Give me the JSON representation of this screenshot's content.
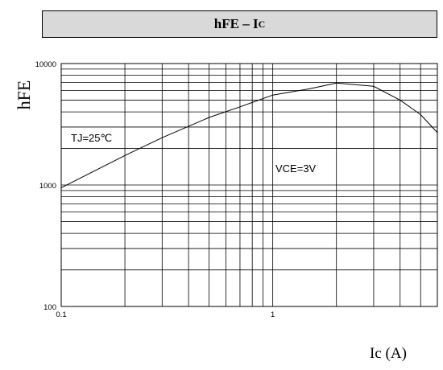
{
  "header": {
    "title_main": "hFE – I",
    "title_sub": "C"
  },
  "chart_data": {
    "type": "line",
    "title": "hFE – IC",
    "xlabel": "Ic (A)",
    "ylabel": "hFE",
    "xscale": "log",
    "yscale": "log",
    "xlim": [
      0.1,
      6
    ],
    "ylim": [
      100,
      10000
    ],
    "grid": true,
    "x_tick_labels": [
      {
        "value": 0.1,
        "label": "0.1"
      },
      {
        "value": 1,
        "label": "1"
      }
    ],
    "y_tick_labels": [
      {
        "value": 100,
        "label": "100"
      },
      {
        "value": 1000,
        "label": "1000"
      },
      {
        "value": 10000,
        "label": "10000"
      }
    ],
    "annotations": {
      "temp": "TJ=25℃",
      "vce": "VCE=3V"
    },
    "series": [
      {
        "x": [
          0.1,
          0.2,
          0.3,
          0.5,
          0.7,
          1.0,
          1.5,
          2.0,
          3.0,
          4.0,
          5.0,
          6.0
        ],
        "y": [
          950,
          1750,
          2450,
          3600,
          4400,
          5500,
          6200,
          6900,
          6500,
          5000,
          3800,
          2700
        ]
      }
    ]
  }
}
